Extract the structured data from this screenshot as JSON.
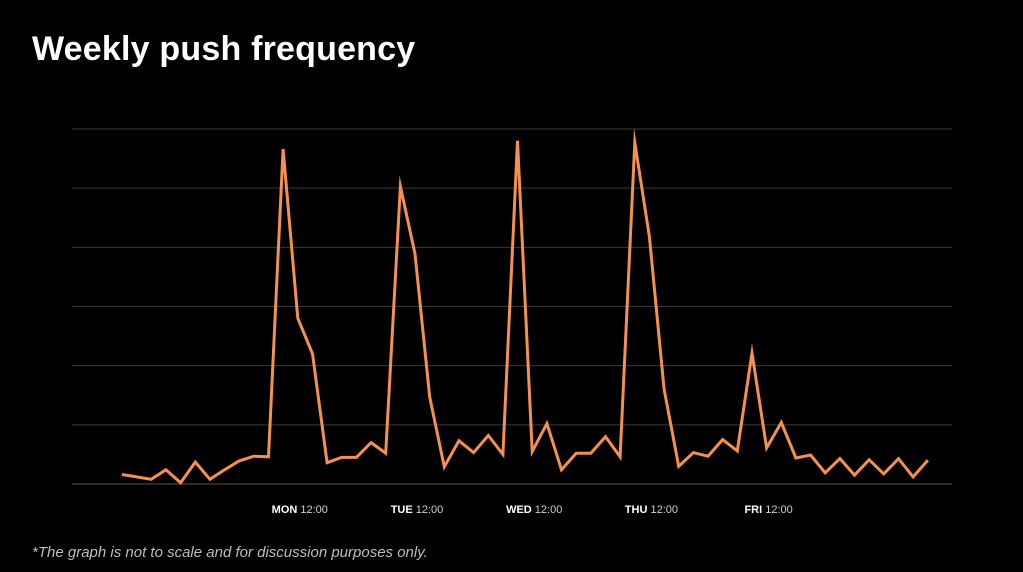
{
  "title": "Weekly push frequency",
  "footnote": "*The graph is not to scale and for discussion purposes only.",
  "colors": {
    "background": "#000000",
    "line": "#f4914f",
    "grid": "#3a3a3a",
    "text": "#ffffff"
  },
  "chart_data": {
    "type": "line",
    "title": "Weekly push frequency",
    "xlabel": "",
    "ylabel": "",
    "ylim": [
      0,
      6
    ],
    "grid": true,
    "legend": "none",
    "x_ticks": [
      {
        "day": "MON",
        "time": "12:00",
        "index": 12
      },
      {
        "day": "TUE",
        "time": "12:00",
        "index": 20
      },
      {
        "day": "WED",
        "time": "12:00",
        "index": 28
      },
      {
        "day": "THU",
        "time": "12:00",
        "index": 36
      },
      {
        "day": "FRI",
        "time": "12:00",
        "index": 44
      }
    ],
    "series": [
      {
        "values": [
          0.16,
          0.12,
          0.08,
          0.24,
          0.02,
          0.37,
          0.08,
          0.24,
          0.39,
          0.47,
          0.46,
          5.66,
          2.8,
          2.2,
          0.36,
          0.45,
          0.45,
          0.7,
          0.52,
          5.03,
          3.89,
          1.47,
          0.29,
          0.73,
          0.53,
          0.82,
          0.5,
          5.8,
          0.55,
          1.02,
          0.24,
          0.52,
          0.52,
          0.8,
          0.46,
          5.77,
          4.18,
          1.6,
          0.3,
          0.53,
          0.47,
          0.75,
          0.56,
          2.21,
          0.61,
          1.04,
          0.44,
          0.49,
          0.19,
          0.43,
          0.15,
          0.41,
          0.17,
          0.43,
          0.12,
          0.4
        ]
      }
    ]
  }
}
